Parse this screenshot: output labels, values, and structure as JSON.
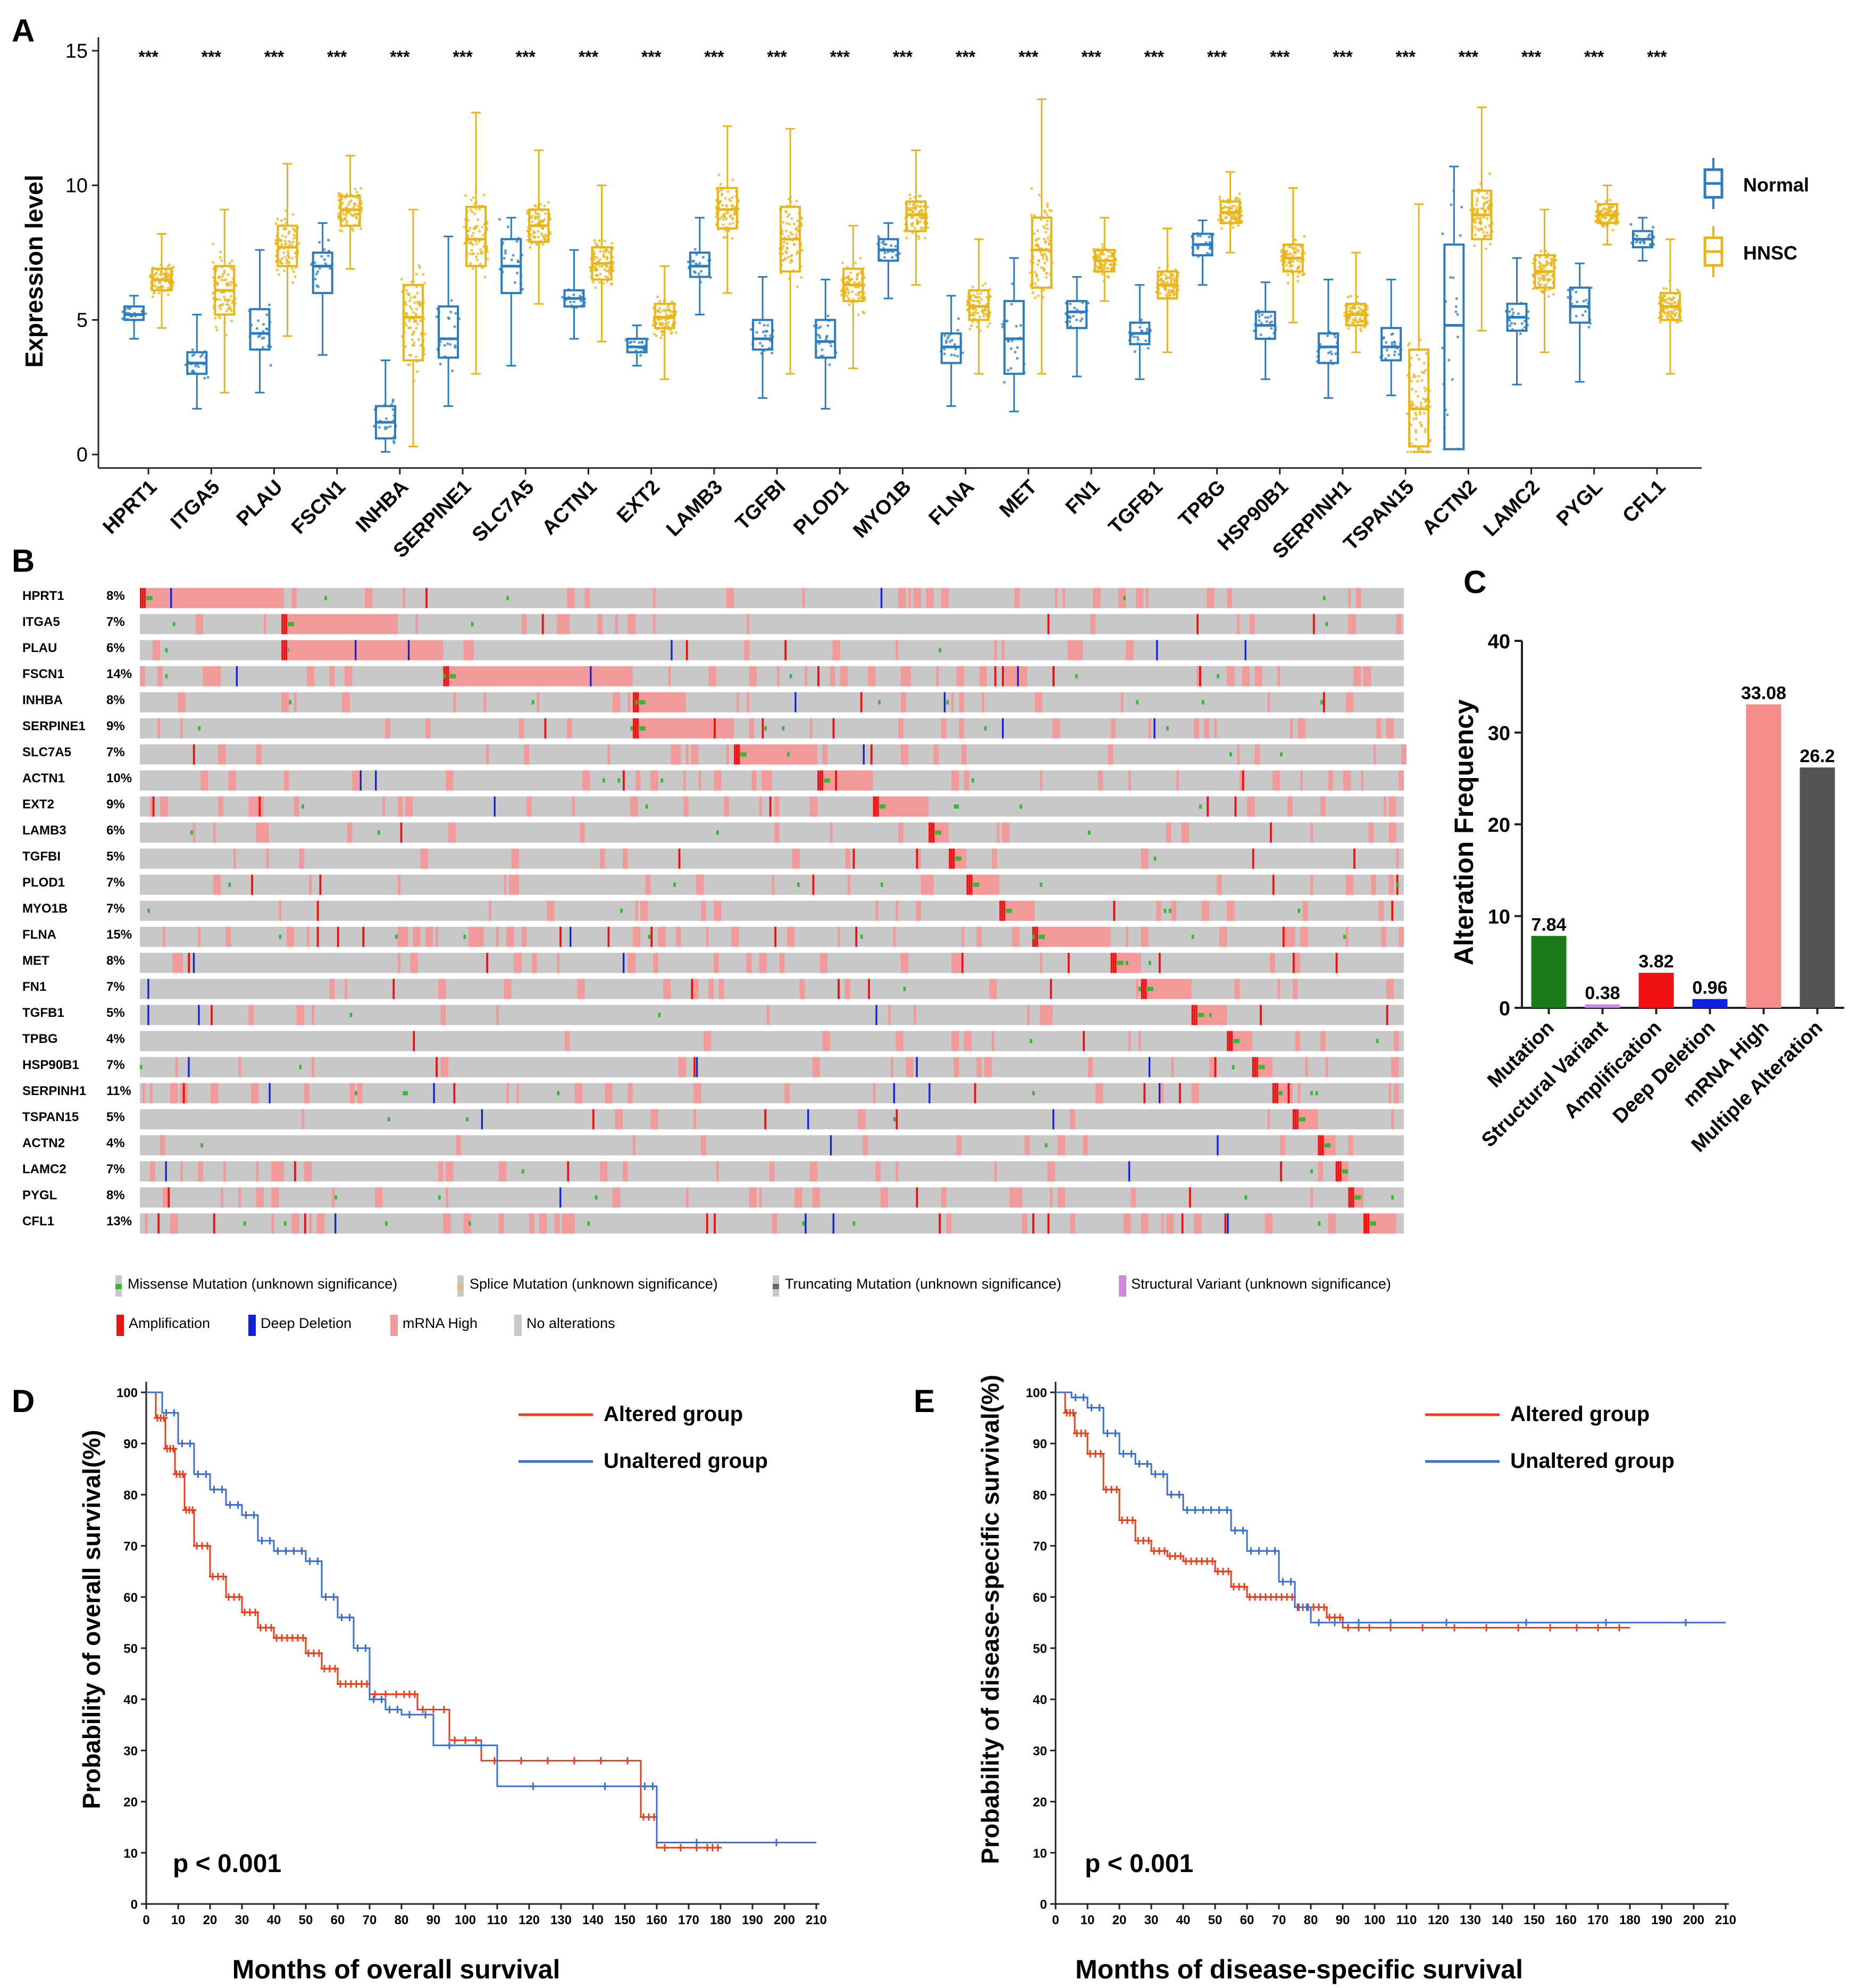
{
  "panels": {
    "A": "A",
    "B": "B",
    "C": "C",
    "D": "D",
    "E": "E"
  },
  "colors": {
    "normal": "#2a7bbf",
    "hnsc": "#e9b416",
    "missense": "#38b636",
    "splice": "#e8b980",
    "truncating": "#666666",
    "structural": "#cc88dd",
    "amplification": "#ee1111",
    "deep_deletion": "#1122dd",
    "mrna_high": "#f29a9a",
    "no_alteration": "#c8c8c8",
    "altered": "#e8401c",
    "unaltered": "#3b6fd6",
    "bar_mutation": "#1a7a1a",
    "bar_structural": "#cc88dd",
    "bar_amp": "#ee1111",
    "bar_deep": "#1122dd",
    "bar_mrna": "#f58c8c",
    "bar_multi": "#555555"
  },
  "chart_data": [
    {
      "id": "A",
      "type": "box",
      "ylabel": "Expression  level",
      "ylim": [
        -0.5,
        15.5
      ],
      "yticks": [
        "0",
        "5",
        "10",
        "15"
      ],
      "legend": [
        {
          "name": "Normal"
        },
        {
          "name": "HNSC"
        }
      ],
      "significance": "***",
      "genes": [
        "HPRT1",
        "ITGA5",
        "PLAU",
        "FSCN1",
        "INHBA",
        "SERPINE1",
        "SLC7A5",
        "ACTN1",
        "EXT2",
        "LAMB3",
        "TGFBI",
        "PLOD1",
        "MYO1B",
        "FLNA",
        "MET",
        "FN1",
        "TGFB1",
        "TPBG",
        "HSP90B1",
        "SERPINH1",
        "TSPAN15",
        "ACTN2",
        "LAMC2",
        "PYGL",
        "CFL1"
      ],
      "normal": [
        [
          4.3,
          5.0,
          5.2,
          5.5,
          5.9
        ],
        [
          1.7,
          3.0,
          3.4,
          3.8,
          5.2
        ],
        [
          2.3,
          3.9,
          4.5,
          5.4,
          7.6
        ],
        [
          3.7,
          6.0,
          7.0,
          7.5,
          8.6
        ],
        [
          0.1,
          0.6,
          1.2,
          1.8,
          3.5
        ],
        [
          1.8,
          3.6,
          4.3,
          5.5,
          8.1
        ],
        [
          3.3,
          6.0,
          7.0,
          8.0,
          8.8
        ],
        [
          4.3,
          5.5,
          5.8,
          6.1,
          7.6
        ],
        [
          3.3,
          3.8,
          4.0,
          4.3,
          4.8
        ],
        [
          5.2,
          6.6,
          7.0,
          7.5,
          8.8
        ],
        [
          2.1,
          3.9,
          4.3,
          5.0,
          6.6
        ],
        [
          1.7,
          3.6,
          4.2,
          5.0,
          6.5
        ],
        [
          5.8,
          7.2,
          7.6,
          8.0,
          8.6
        ],
        [
          1.8,
          3.4,
          4.0,
          4.5,
          5.9
        ],
        [
          1.6,
          3.0,
          4.3,
          5.7,
          7.3
        ],
        [
          2.9,
          4.7,
          5.3,
          5.7,
          6.6
        ],
        [
          2.8,
          4.1,
          4.5,
          4.9,
          6.3
        ],
        [
          6.3,
          7.4,
          7.8,
          8.2,
          8.7
        ],
        [
          2.8,
          4.3,
          4.8,
          5.3,
          6.4
        ],
        [
          2.1,
          3.4,
          4.0,
          4.5,
          6.5
        ],
        [
          2.2,
          3.5,
          4.0,
          4.7,
          6.5
        ],
        [
          0.2,
          0.2,
          4.8,
          7.8,
          10.7
        ],
        [
          2.6,
          4.6,
          5.1,
          5.6,
          7.3
        ],
        [
          2.7,
          4.9,
          5.5,
          6.2,
          7.1
        ],
        [
          7.2,
          7.7,
          8.0,
          8.3,
          8.8
        ]
      ],
      "hnsc": [
        [
          4.7,
          6.1,
          6.5,
          6.9,
          8.2
        ],
        [
          2.3,
          5.2,
          6.1,
          7.0,
          9.1
        ],
        [
          4.4,
          7.0,
          7.7,
          8.5,
          10.8
        ],
        [
          6.9,
          8.5,
          9.1,
          9.6,
          11.1
        ],
        [
          0.3,
          3.5,
          5.1,
          6.3,
          9.1
        ],
        [
          3.0,
          7.0,
          8.0,
          9.2,
          12.7
        ],
        [
          5.6,
          7.9,
          8.5,
          9.1,
          11.3
        ],
        [
          4.2,
          6.5,
          7.1,
          7.7,
          10.0
        ],
        [
          2.8,
          4.7,
          5.1,
          5.6,
          7.0
        ],
        [
          6.0,
          8.4,
          9.1,
          9.9,
          12.2
        ],
        [
          3.0,
          6.8,
          8.0,
          9.2,
          12.1
        ],
        [
          3.2,
          5.7,
          6.3,
          6.9,
          8.5
        ],
        [
          6.3,
          8.3,
          8.9,
          9.4,
          11.3
        ],
        [
          3.0,
          5.0,
          5.5,
          6.1,
          8.0
        ],
        [
          3.0,
          6.2,
          7.6,
          8.8,
          13.2
        ],
        [
          5.7,
          6.8,
          7.2,
          7.6,
          8.8
        ],
        [
          3.8,
          5.8,
          6.3,
          6.8,
          8.4
        ],
        [
          7.5,
          8.6,
          9.0,
          9.4,
          10.5
        ],
        [
          4.9,
          6.8,
          7.3,
          7.8,
          9.9
        ],
        [
          3.8,
          4.8,
          5.2,
          5.6,
          7.5
        ],
        [
          0.1,
          0.3,
          1.7,
          3.9,
          9.3
        ],
        [
          4.6,
          8.0,
          8.9,
          9.8,
          12.9
        ],
        [
          3.8,
          6.2,
          6.8,
          7.4,
          9.1
        ],
        [
          7.8,
          8.6,
          8.9,
          9.3,
          10.0
        ],
        [
          3.0,
          5.0,
          5.5,
          6.0,
          8.0
        ]
      ]
    },
    {
      "id": "B",
      "type": "oncoprint",
      "genes": [
        "HPRT1",
        "ITGA5",
        "PLAU",
        "FSCN1",
        "INHBA",
        "SERPINE1",
        "SLC7A5",
        "ACTN1",
        "EXT2",
        "LAMB3",
        "TGFBI",
        "PLOD1",
        "MYO1B",
        "FLNA",
        "MET",
        "FN1",
        "TGFB1",
        "TPBG",
        "HSP90B1",
        "SERPINH1",
        "TSPAN15",
        "ACTN2",
        "LAMC2",
        "PYGL",
        "CFL1"
      ],
      "percentages": [
        "8%",
        "7%",
        "6%",
        "14%",
        "8%",
        "9%",
        "7%",
        "10%",
        "9%",
        "6%",
        "5%",
        "7%",
        "7%",
        "15%",
        "8%",
        "7%",
        "5%",
        "4%",
        "7%",
        "11%",
        "5%",
        "4%",
        "7%",
        "8%",
        "13%"
      ],
      "legend_row1": [
        "Missense Mutation (unknown significance)",
        "Splice Mutation (unknown significance)",
        "Truncating Mutation (unknown significance)",
        "Structural Variant (unknown significance)"
      ],
      "legend_row2": [
        "Amplification",
        "Deep Deletion",
        "mRNA High",
        "No alterations"
      ]
    },
    {
      "id": "C",
      "type": "bar",
      "ylabel": "Alteration Frequency",
      "ylim": [
        0,
        40
      ],
      "yticks": [
        "0",
        "10",
        "20",
        "30",
        "40"
      ],
      "categories": [
        "Mutation",
        "Structural Variant",
        "Amplification",
        "Deep Deletion",
        "mRNA High",
        "Multiple Alteration"
      ],
      "values": [
        7.84,
        0.38,
        3.82,
        0.96,
        33.08,
        26.2
      ],
      "labels": [
        "7.84",
        "0.38",
        "3.82",
        "0.96",
        "33.08",
        "26.2"
      ]
    },
    {
      "id": "D",
      "type": "line",
      "xlabel": "Months of overall  survival",
      "ylabel": "Probability  of overall  survival(%)",
      "xlim": [
        0,
        210
      ],
      "ylim": [
        0,
        100
      ],
      "xticks": [
        "0",
        "10",
        "20",
        "30",
        "40",
        "50",
        "60",
        "70",
        "80",
        "90",
        "100",
        "110",
        "120",
        "130",
        "140",
        "150",
        "160",
        "170",
        "180",
        "190",
        "200",
        "210"
      ],
      "yticks": [
        "0",
        "10",
        "20",
        "30",
        "40",
        "50",
        "60",
        "70",
        "80",
        "90",
        "100"
      ],
      "pvalue": "p < 0.001",
      "series": [
        {
          "name": "Altered group",
          "x": [
            0,
            3,
            6,
            9,
            12,
            15,
            20,
            25,
            30,
            35,
            40,
            45,
            50,
            55,
            60,
            65,
            70,
            80,
            85,
            95,
            105,
            130,
            155,
            160,
            175,
            180
          ],
          "y": [
            100,
            95,
            89,
            84,
            77,
            70,
            64,
            60,
            57,
            54,
            52,
            52,
            49,
            46,
            43,
            43,
            41,
            41,
            38,
            32,
            28,
            28,
            17,
            11,
            11,
            11
          ]
        },
        {
          "name": "Unaltered group",
          "x": [
            0,
            5,
            10,
            15,
            20,
            25,
            30,
            35,
            40,
            45,
            50,
            55,
            60,
            65,
            70,
            75,
            80,
            90,
            110,
            155,
            160,
            210
          ],
          "y": [
            100,
            96,
            90,
            84,
            81,
            78,
            76,
            71,
            69,
            69,
            67,
            60,
            56,
            50,
            40,
            38,
            37,
            31,
            23,
            23,
            12,
            12
          ]
        }
      ]
    },
    {
      "id": "E",
      "type": "line",
      "xlabel": "Months of disease-specific  survival",
      "ylabel": "Probability  of disease-specific  survival(%)",
      "xlim": [
        0,
        210
      ],
      "ylim": [
        0,
        100
      ],
      "xticks": [
        "0",
        "10",
        "20",
        "30",
        "40",
        "50",
        "60",
        "70",
        "80",
        "90",
        "100",
        "110",
        "120",
        "130",
        "140",
        "150",
        "160",
        "170",
        "180",
        "190",
        "200",
        "210"
      ],
      "yticks": [
        "0",
        "10",
        "20",
        "30",
        "40",
        "50",
        "60",
        "70",
        "80",
        "90",
        "100"
      ],
      "pvalue": "p < 0.001",
      "series": [
        {
          "name": "Altered group",
          "x": [
            0,
            3,
            6,
            10,
            15,
            20,
            25,
            30,
            35,
            40,
            45,
            50,
            55,
            60,
            65,
            70,
            75,
            80,
            85,
            90,
            100,
            130,
            160,
            180
          ],
          "y": [
            100,
            96,
            92,
            88,
            81,
            75,
            71,
            69,
            68,
            67,
            67,
            65,
            62,
            60,
            60,
            60,
            58,
            58,
            56,
            54,
            54,
            54,
            54,
            54
          ]
        },
        {
          "name": "Unaltered group",
          "x": [
            0,
            5,
            10,
            15,
            20,
            25,
            30,
            35,
            40,
            45,
            50,
            55,
            60,
            65,
            70,
            75,
            80,
            90,
            110,
            160,
            210
          ],
          "y": [
            100,
            99,
            97,
            92,
            88,
            86,
            84,
            80,
            77,
            77,
            77,
            73,
            69,
            69,
            63,
            58,
            55,
            55,
            55,
            55,
            55
          ]
        }
      ]
    }
  ]
}
